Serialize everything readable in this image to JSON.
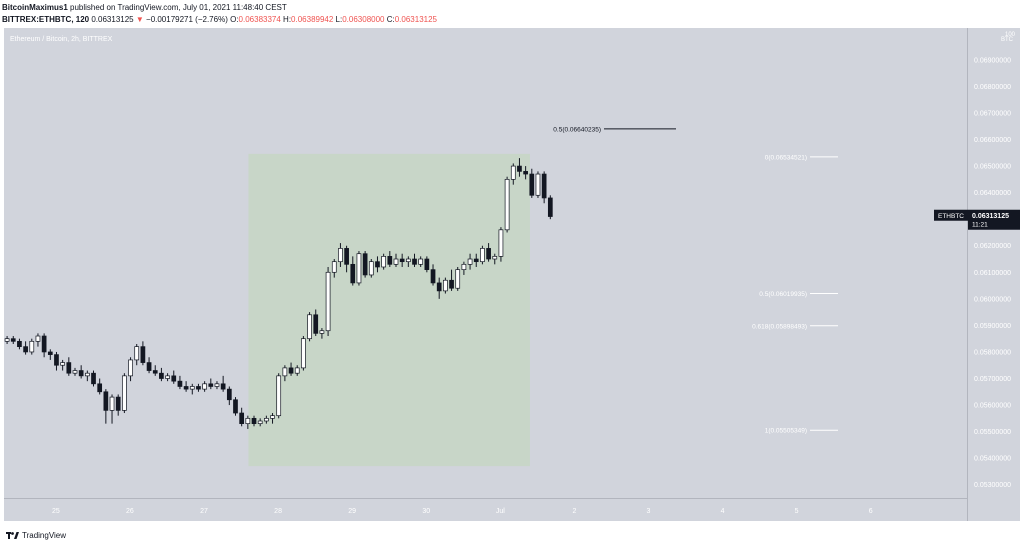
{
  "header": {
    "author": "BitcoinMaximus1",
    "published": "published on TradingView.com, July 01, 2021 11:48:40 CEST",
    "symbol": "BITTREX:ETHBTC, 120",
    "last": "0.06313125",
    "change": "−0.00179271 (−2.76%)",
    "o_label": "O:",
    "o": "0.06383374",
    "h_label": "H:",
    "h": "0.06389942",
    "l_label": "L:",
    "l": "0.06308000",
    "c_label": "C:",
    "c": "0.06313125"
  },
  "footer": {
    "brand": "TradingView"
  },
  "colors": {
    "background": "#d1d4dc",
    "highlight": "#c8d6c8",
    "up_candle": "#ffffff",
    "down_candle": "#131722",
    "fib_line": "#ffffff",
    "half_line": "#131722",
    "price_tag": "#131722",
    "down_arrow": "#ef5350"
  },
  "chart_data": {
    "type": "candlestick",
    "title": "Ethereum / Bitcoin, 2h, BITTREX",
    "y_unit": "BTC",
    "y_unit_extra": "100",
    "ylim": [
      0.0525,
      0.0702
    ],
    "x_day_range": [
      24.3,
      37.3
    ],
    "y_ticks": [
      "0.06900000",
      "0.06800000",
      "0.06700000",
      "0.06600000",
      "0.06500000",
      "0.06400000",
      "0.06200000",
      "0.06100000",
      "0.06000000",
      "0.05900000",
      "0.05800000",
      "0.05700000",
      "0.05600000",
      "0.05500000",
      "0.05400000",
      "0.05300000"
    ],
    "x_ticks": [
      {
        "label": "25",
        "day": 25
      },
      {
        "label": "26",
        "day": 26
      },
      {
        "label": "27",
        "day": 27
      },
      {
        "label": "28",
        "day": 28
      },
      {
        "label": "29",
        "day": 29
      },
      {
        "label": "30",
        "day": 30
      },
      {
        "label": "Jul",
        "day": 31
      },
      {
        "label": "2",
        "day": 32
      },
      {
        "label": "3",
        "day": 33
      },
      {
        "label": "4",
        "day": 34
      },
      {
        "label": "5",
        "day": 35
      },
      {
        "label": "6",
        "day": 36
      }
    ],
    "price_tag": {
      "symbol": "ETHBTC",
      "price": "0.06313125",
      "value": 0.06313,
      "countdown": "11:21"
    },
    "highlight_region": {
      "x_start_day": 27.6,
      "x_end_day": 31.4,
      "y_low": 0.0537,
      "y_high": 0.06546
    },
    "fib_levels": [
      {
        "label": "0(0.06534521)",
        "value": 0.06534521
      },
      {
        "label": "0.5(0.06019935)",
        "value": 0.06019935
      },
      {
        "label": "0.618(0.05898493)",
        "value": 0.05898493
      },
      {
        "label": "1(0.05505349)",
        "value": 0.05505349
      }
    ],
    "half_level": {
      "label": "0.5(0.06640235)",
      "value": 0.06640235
    },
    "candles": [
      {
        "o": 0.0584,
        "h": 0.0586,
        "l": 0.0583,
        "c": 0.0585
      },
      {
        "o": 0.0585,
        "h": 0.0586,
        "l": 0.0583,
        "c": 0.0584
      },
      {
        "o": 0.0584,
        "h": 0.0585,
        "l": 0.0581,
        "c": 0.0582
      },
      {
        "o": 0.0582,
        "h": 0.0584,
        "l": 0.0579,
        "c": 0.058
      },
      {
        "o": 0.058,
        "h": 0.0585,
        "l": 0.0579,
        "c": 0.0584
      },
      {
        "o": 0.0584,
        "h": 0.0587,
        "l": 0.0582,
        "c": 0.0586
      },
      {
        "o": 0.0586,
        "h": 0.0587,
        "l": 0.0578,
        "c": 0.058
      },
      {
        "o": 0.058,
        "h": 0.0581,
        "l": 0.0577,
        "c": 0.0579
      },
      {
        "o": 0.0579,
        "h": 0.058,
        "l": 0.0573,
        "c": 0.0575
      },
      {
        "o": 0.0575,
        "h": 0.0577,
        "l": 0.0573,
        "c": 0.0576
      },
      {
        "o": 0.0576,
        "h": 0.0578,
        "l": 0.0571,
        "c": 0.0572
      },
      {
        "o": 0.0572,
        "h": 0.0574,
        "l": 0.0571,
        "c": 0.0573
      },
      {
        "o": 0.0573,
        "h": 0.0575,
        "l": 0.057,
        "c": 0.0571
      },
      {
        "o": 0.0571,
        "h": 0.0573,
        "l": 0.0569,
        "c": 0.0572
      },
      {
        "o": 0.0572,
        "h": 0.0573,
        "l": 0.0567,
        "c": 0.0568
      },
      {
        "o": 0.0568,
        "h": 0.057,
        "l": 0.0564,
        "c": 0.0565
      },
      {
        "o": 0.0565,
        "h": 0.0566,
        "l": 0.0553,
        "c": 0.0558
      },
      {
        "o": 0.0558,
        "h": 0.0564,
        "l": 0.0553,
        "c": 0.0563
      },
      {
        "o": 0.0563,
        "h": 0.0564,
        "l": 0.0556,
        "c": 0.0558
      },
      {
        "o": 0.0558,
        "h": 0.0572,
        "l": 0.0557,
        "c": 0.0571
      },
      {
        "o": 0.0571,
        "h": 0.0578,
        "l": 0.0569,
        "c": 0.0577
      },
      {
        "o": 0.0577,
        "h": 0.0583,
        "l": 0.0575,
        "c": 0.0582
      },
      {
        "o": 0.0582,
        "h": 0.0584,
        "l": 0.0575,
        "c": 0.0576
      },
      {
        "o": 0.0576,
        "h": 0.0578,
        "l": 0.0572,
        "c": 0.0573
      },
      {
        "o": 0.0573,
        "h": 0.0575,
        "l": 0.0571,
        "c": 0.0572
      },
      {
        "o": 0.0572,
        "h": 0.0574,
        "l": 0.0569,
        "c": 0.057
      },
      {
        "o": 0.057,
        "h": 0.0572,
        "l": 0.0569,
        "c": 0.0571
      },
      {
        "o": 0.0571,
        "h": 0.0573,
        "l": 0.0568,
        "c": 0.0569
      },
      {
        "o": 0.0569,
        "h": 0.0571,
        "l": 0.0566,
        "c": 0.0567
      },
      {
        "o": 0.0567,
        "h": 0.0569,
        "l": 0.0565,
        "c": 0.0566
      },
      {
        "o": 0.0566,
        "h": 0.0568,
        "l": 0.0564,
        "c": 0.0567
      },
      {
        "o": 0.0567,
        "h": 0.0568,
        "l": 0.0565,
        "c": 0.0566
      },
      {
        "o": 0.0566,
        "h": 0.0569,
        "l": 0.0565,
        "c": 0.0568
      },
      {
        "o": 0.0568,
        "h": 0.057,
        "l": 0.0566,
        "c": 0.0567
      },
      {
        "o": 0.0567,
        "h": 0.0569,
        "l": 0.0566,
        "c": 0.0568
      },
      {
        "o": 0.0568,
        "h": 0.0571,
        "l": 0.0565,
        "c": 0.0566
      },
      {
        "o": 0.0566,
        "h": 0.0567,
        "l": 0.056,
        "c": 0.0562
      },
      {
        "o": 0.0562,
        "h": 0.0563,
        "l": 0.0556,
        "c": 0.0557
      },
      {
        "o": 0.0557,
        "h": 0.0559,
        "l": 0.0552,
        "c": 0.0553
      },
      {
        "o": 0.0553,
        "h": 0.0556,
        "l": 0.0551,
        "c": 0.0555
      },
      {
        "o": 0.0555,
        "h": 0.0556,
        "l": 0.0552,
        "c": 0.0553
      },
      {
        "o": 0.0553,
        "h": 0.0555,
        "l": 0.0552,
        "c": 0.0554
      },
      {
        "o": 0.0554,
        "h": 0.0556,
        "l": 0.0553,
        "c": 0.0555
      },
      {
        "o": 0.0555,
        "h": 0.0557,
        "l": 0.0553,
        "c": 0.0556
      },
      {
        "o": 0.0556,
        "h": 0.0572,
        "l": 0.0555,
        "c": 0.0571
      },
      {
        "o": 0.0571,
        "h": 0.0575,
        "l": 0.0569,
        "c": 0.0574
      },
      {
        "o": 0.0574,
        "h": 0.0576,
        "l": 0.0571,
        "c": 0.0572
      },
      {
        "o": 0.0572,
        "h": 0.0575,
        "l": 0.0571,
        "c": 0.0574
      },
      {
        "o": 0.0574,
        "h": 0.0586,
        "l": 0.0573,
        "c": 0.0585
      },
      {
        "o": 0.0585,
        "h": 0.0595,
        "l": 0.0584,
        "c": 0.0594
      },
      {
        "o": 0.0594,
        "h": 0.0596,
        "l": 0.0586,
        "c": 0.0587
      },
      {
        "o": 0.0587,
        "h": 0.0589,
        "l": 0.0585,
        "c": 0.0588
      },
      {
        "o": 0.0588,
        "h": 0.0612,
        "l": 0.0586,
        "c": 0.061
      },
      {
        "o": 0.061,
        "h": 0.0615,
        "l": 0.0608,
        "c": 0.0614
      },
      {
        "o": 0.0614,
        "h": 0.0621,
        "l": 0.0612,
        "c": 0.0619
      },
      {
        "o": 0.0619,
        "h": 0.062,
        "l": 0.061,
        "c": 0.0613
      },
      {
        "o": 0.0613,
        "h": 0.0616,
        "l": 0.0605,
        "c": 0.0606
      },
      {
        "o": 0.0606,
        "h": 0.0618,
        "l": 0.0605,
        "c": 0.0617
      },
      {
        "o": 0.0617,
        "h": 0.0618,
        "l": 0.0608,
        "c": 0.0609
      },
      {
        "o": 0.0609,
        "h": 0.0615,
        "l": 0.0608,
        "c": 0.0614
      },
      {
        "o": 0.0614,
        "h": 0.0616,
        "l": 0.061,
        "c": 0.0612
      },
      {
        "o": 0.0612,
        "h": 0.0617,
        "l": 0.0611,
        "c": 0.0616
      },
      {
        "o": 0.0616,
        "h": 0.0618,
        "l": 0.0612,
        "c": 0.0613
      },
      {
        "o": 0.0613,
        "h": 0.0617,
        "l": 0.0612,
        "c": 0.0615
      },
      {
        "o": 0.0615,
        "h": 0.0617,
        "l": 0.0612,
        "c": 0.0614
      },
      {
        "o": 0.0614,
        "h": 0.0616,
        "l": 0.0612,
        "c": 0.0615
      },
      {
        "o": 0.0615,
        "h": 0.0617,
        "l": 0.0612,
        "c": 0.0613
      },
      {
        "o": 0.0613,
        "h": 0.0616,
        "l": 0.0612,
        "c": 0.0615
      },
      {
        "o": 0.0615,
        "h": 0.0616,
        "l": 0.061,
        "c": 0.0611
      },
      {
        "o": 0.0611,
        "h": 0.0613,
        "l": 0.0605,
        "c": 0.0606
      },
      {
        "o": 0.0606,
        "h": 0.0608,
        "l": 0.06,
        "c": 0.0603
      },
      {
        "o": 0.0603,
        "h": 0.0608,
        "l": 0.0602,
        "c": 0.0607
      },
      {
        "o": 0.0607,
        "h": 0.0611,
        "l": 0.0603,
        "c": 0.0604
      },
      {
        "o": 0.0604,
        "h": 0.0612,
        "l": 0.0603,
        "c": 0.0611
      },
      {
        "o": 0.0611,
        "h": 0.0614,
        "l": 0.0609,
        "c": 0.0613
      },
      {
        "o": 0.0613,
        "h": 0.0617,
        "l": 0.0611,
        "c": 0.0615
      },
      {
        "o": 0.0615,
        "h": 0.0617,
        "l": 0.0612,
        "c": 0.0614
      },
      {
        "o": 0.0614,
        "h": 0.062,
        "l": 0.0613,
        "c": 0.0619
      },
      {
        "o": 0.0619,
        "h": 0.0621,
        "l": 0.0614,
        "c": 0.0615
      },
      {
        "o": 0.0615,
        "h": 0.0617,
        "l": 0.0613,
        "c": 0.0616
      },
      {
        "o": 0.0616,
        "h": 0.0627,
        "l": 0.0614,
        "c": 0.0626
      },
      {
        "o": 0.0626,
        "h": 0.0646,
        "l": 0.0625,
        "c": 0.0645
      },
      {
        "o": 0.0645,
        "h": 0.0651,
        "l": 0.0643,
        "c": 0.065
      },
      {
        "o": 0.065,
        "h": 0.0653,
        "l": 0.0646,
        "c": 0.0648
      },
      {
        "o": 0.0648,
        "h": 0.065,
        "l": 0.0645,
        "c": 0.0647
      },
      {
        "o": 0.0647,
        "h": 0.0649,
        "l": 0.0638,
        "c": 0.0639
      },
      {
        "o": 0.0639,
        "h": 0.0648,
        "l": 0.0638,
        "c": 0.0647
      },
      {
        "o": 0.0647,
        "h": 0.0648,
        "l": 0.0636,
        "c": 0.0638
      },
      {
        "o": 0.0638,
        "h": 0.0639,
        "l": 0.063,
        "c": 0.0631
      }
    ]
  }
}
